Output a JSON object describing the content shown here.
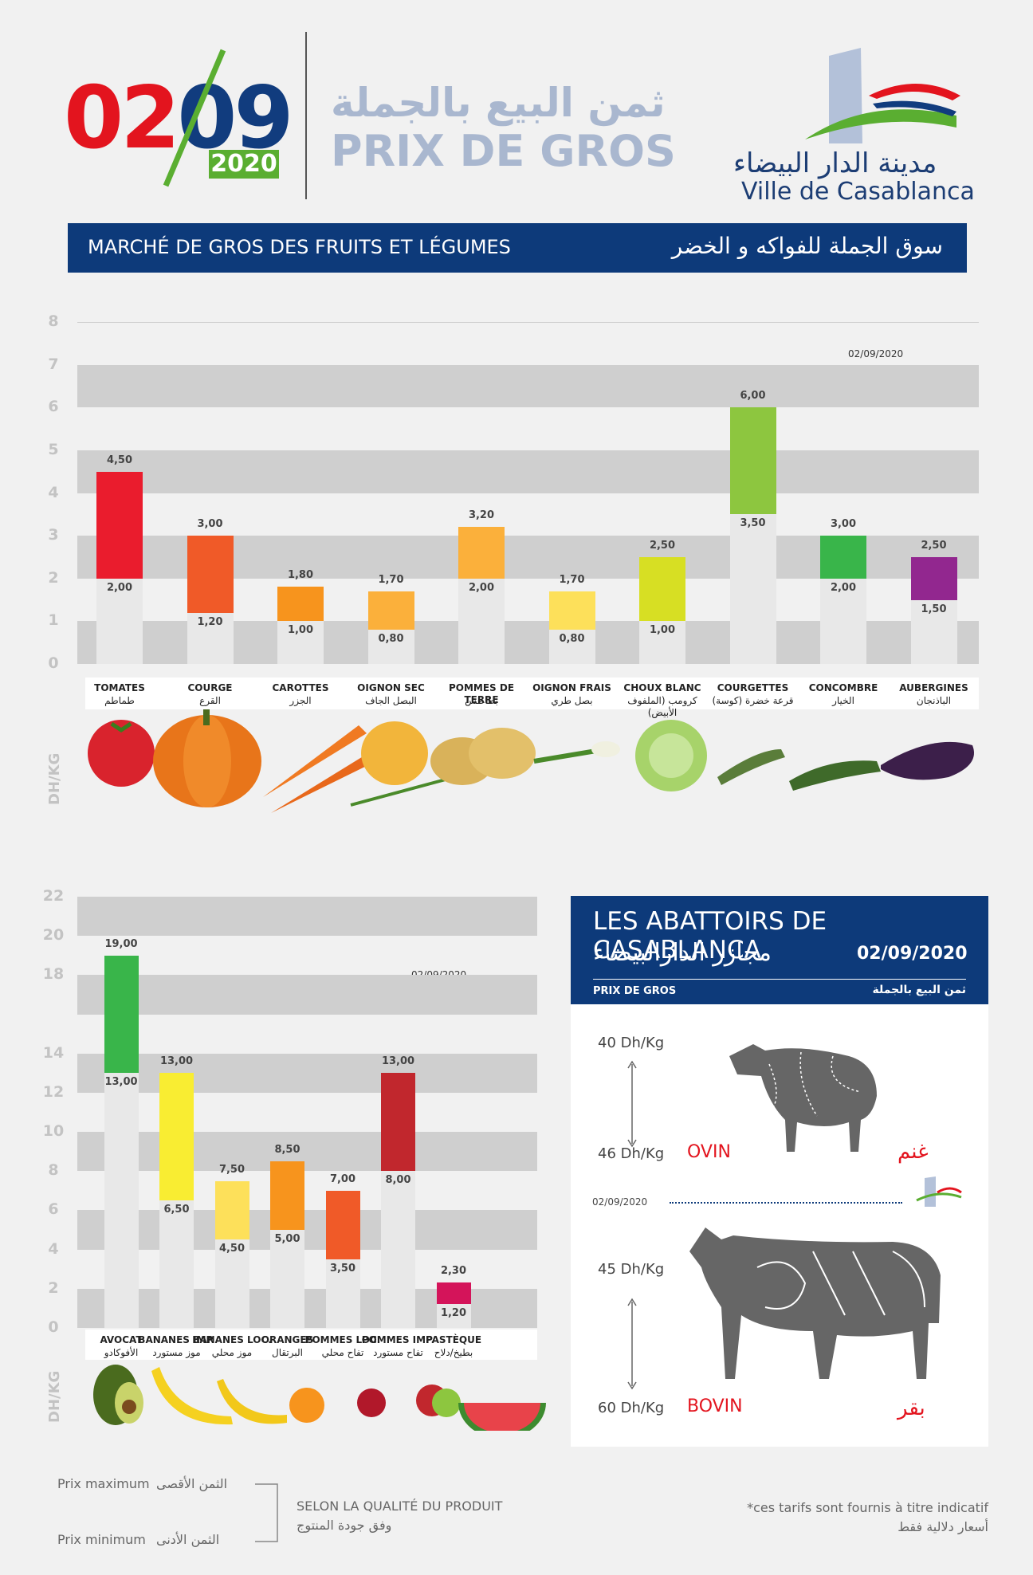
{
  "header": {
    "date_day": "02",
    "date_month": "09",
    "date_year": "2020",
    "title_ar": "ثمن البيع بالجملة",
    "title_fr": "PRIX DE GROS",
    "city_ar": "مدينة الدار البيضاء",
    "city_fr": "Ville de Casablanca"
  },
  "banner": {
    "title_fr": "MARCHÉ DE GROS DES FRUITS ET LÉGUMES",
    "title_ar": "سوق الجملة للفواكه و الخضر"
  },
  "colors": {
    "accent": "#0d3a7a",
    "red": "#e3141e",
    "green": "#5aae31"
  },
  "chart_data": [
    {
      "type": "bar",
      "stamp": "02/09/2020",
      "unit": "DH/KG",
      "ylim": [
        0,
        8
      ],
      "yticks": [
        0,
        1,
        2,
        3,
        4,
        5,
        6,
        7,
        8
      ],
      "categories": [
        "TOMATES",
        "COURGE",
        "CAROTTES",
        "OIGNON SEC",
        "POMMES DE TERRE",
        "OIGNON FRAIS",
        "CHOUX BLANC",
        "COURGETTES",
        "CONCOMBRE",
        "AUBERGINES"
      ],
      "categories_ar": [
        "طماطم",
        "القرع",
        "الجزر",
        "البصل الجاف",
        "بطاطس",
        "بصل طري",
        "كرومب (الملفوف الأبيض)",
        "قرعة خضرة (كوسة)",
        "الخيار",
        "الباذنجان"
      ],
      "min_labels": [
        "2,00",
        "1,20",
        "1,00",
        "0,80",
        "2,00",
        "0,80",
        "1,00",
        "3,50",
        "2,00",
        "1,50"
      ],
      "max_labels": [
        "4,50",
        "3,00",
        "1,80",
        "1,70",
        "3,20",
        "1,70",
        "2,50",
        "6,00",
        "3,00",
        "2,50"
      ],
      "series": [
        {
          "name": "Prix minimum",
          "values": [
            2.0,
            1.2,
            1.0,
            0.8,
            2.0,
            0.8,
            1.0,
            3.5,
            2.0,
            1.5
          ]
        },
        {
          "name": "Prix maximum",
          "values": [
            4.5,
            3.0,
            1.8,
            1.7,
            3.2,
            1.7,
            2.5,
            6.0,
            3.0,
            2.5
          ]
        }
      ],
      "colors": [
        "#ea1c2d",
        "#f05a28",
        "#f7941d",
        "#fbb03b",
        "#fbb03b",
        "#fde05a",
        "#d7df23",
        "#8dc63f",
        "#39b54a",
        "#92278f"
      ],
      "grid": true
    },
    {
      "type": "bar",
      "stamp": "02/09/2020",
      "unit": "DH/KG",
      "ylim": [
        0,
        22
      ],
      "yticks": [
        0,
        2,
        4,
        6,
        8,
        10,
        12,
        14,
        18,
        20,
        22
      ],
      "categories": [
        "AVOCAT",
        "BANANES IMP.",
        "BANANES LOC.",
        "ORANGES",
        "POMMES LOC.",
        "POMMES IMP.",
        "PASTÈQUE"
      ],
      "categories_ar": [
        "الأفوكادو",
        "موز مستورد",
        "موز محلي",
        "البرتقال",
        "تفاح محلي",
        "تفاح مستورد",
        "بطيخ/دلاح"
      ],
      "min_labels": [
        "13,00",
        "6,50",
        "4,50",
        "5,00",
        "3,50",
        "8,00",
        "1,20"
      ],
      "max_labels": [
        "19,00",
        "13,00",
        "7,50",
        "8,50",
        "7,00",
        "13,00",
        "2,30"
      ],
      "series": [
        {
          "name": "Prix minimum",
          "values": [
            13.0,
            6.5,
            4.5,
            5.0,
            3.5,
            8.0,
            1.2
          ]
        },
        {
          "name": "Prix maximum",
          "values": [
            19.0,
            13.0,
            7.5,
            8.5,
            7.0,
            13.0,
            2.3
          ]
        }
      ],
      "colors": [
        "#39b54a",
        "#f9ed32",
        "#fde05a",
        "#f7941d",
        "#f05a28",
        "#c1272d",
        "#d4145a"
      ],
      "grid": true
    }
  ],
  "abattoirs": {
    "title_fr": "LES ABATTOIRS DE CASABLANCA",
    "title_ar": "مجازر الدارالبيضاء",
    "date": "02/09/2020",
    "sub_fr": "PRIX DE GROS",
    "sub_ar": "ثمن البيع بالجملة",
    "stamp": "02/09/2020",
    "ovin": {
      "label_fr": "OVIN",
      "label_ar": "غنم",
      "min": "40 Dh/Kg",
      "max": "46 Dh/Kg"
    },
    "bovin": {
      "label_fr": "BOVIN",
      "label_ar": "بقر",
      "min": "45 Dh/Kg",
      "max": "60 Dh/Kg"
    }
  },
  "legend": {
    "max_fr": "Prix maximum",
    "max_ar": "الثمن الأقصى",
    "min_fr": "Prix minimum",
    "min_ar": "الثمن الأدنى",
    "quality_fr": "SELON LA QUALITÉ DU PRODUIT",
    "quality_ar": "وفق جودة المنتوج",
    "note_fr": "*ces tarifs sont fournis à titre indicatif",
    "note_ar": "أسعار دلالية فقط"
  }
}
